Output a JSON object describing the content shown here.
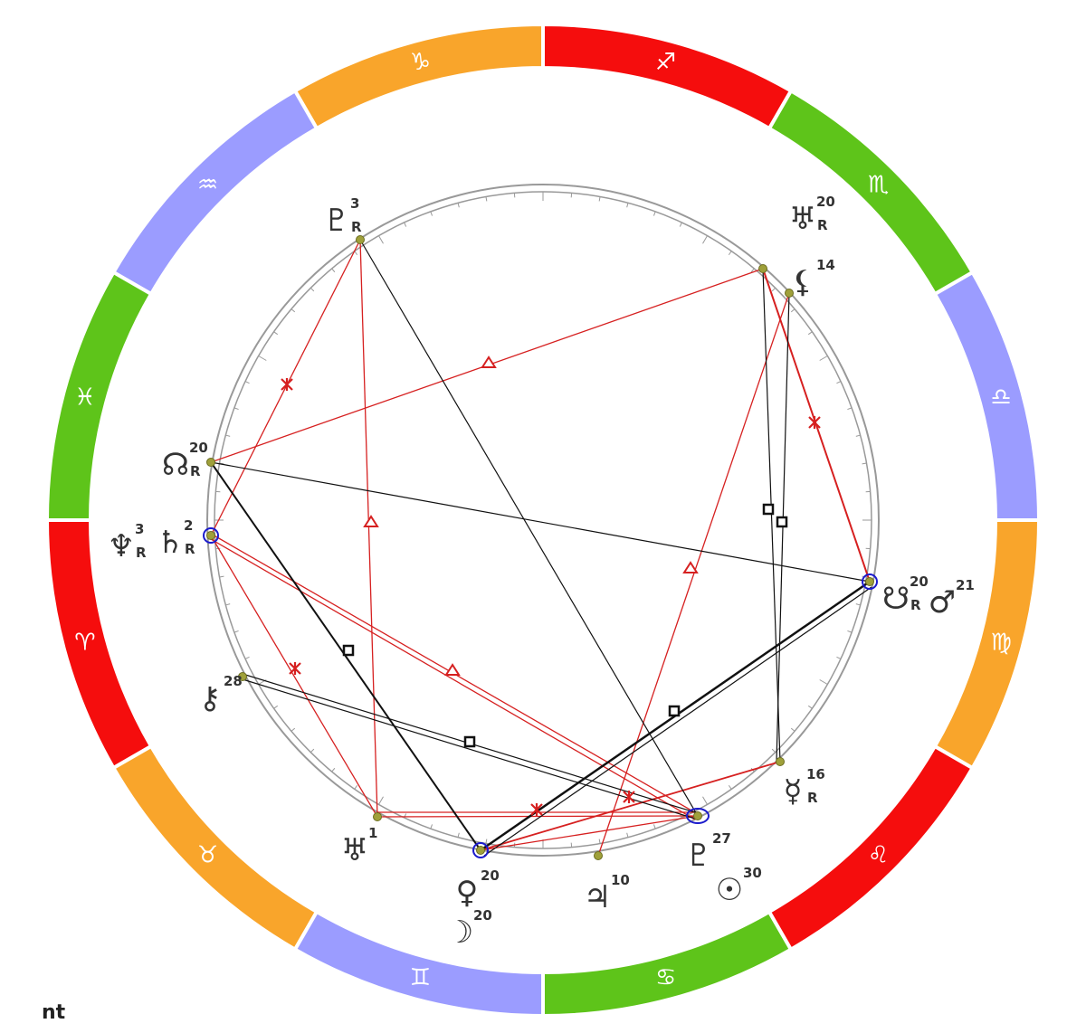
{
  "zodiac": [
    {
      "glyph": "♎",
      "color": "#9b9cff"
    },
    {
      "glyph": "♏",
      "color": "#5ec41a"
    },
    {
      "glyph": "♐",
      "color": "#f50d0d"
    },
    {
      "glyph": "♑",
      "color": "#f9a52b"
    },
    {
      "glyph": "♒",
      "color": "#9b9cff"
    },
    {
      "glyph": "♓",
      "color": "#5ec41a"
    },
    {
      "glyph": "♈",
      "color": "#f50d0d"
    },
    {
      "glyph": "♉",
      "color": "#f9a52b"
    },
    {
      "glyph": "♊",
      "color": "#9b9cff"
    },
    {
      "glyph": "♋",
      "color": "#5ec41a"
    },
    {
      "glyph": "♌",
      "color": "#f50d0d"
    },
    {
      "glyph": "♍",
      "color": "#f9a52b"
    }
  ],
  "planets": [
    {
      "glyph": "♇",
      "degree": 3,
      "retrograde": "R"
    },
    {
      "glyph": "♅",
      "degree": 20,
      "retrograde": "R"
    },
    {
      "glyph": "⚸",
      "degree": 14
    },
    {
      "glyph": "☊",
      "degree": 20,
      "retrograde": "R"
    },
    {
      "glyph": "♆",
      "degree": 3,
      "retrograde": "R"
    },
    {
      "glyph": "♄",
      "degree": 2,
      "retrograde": "R"
    },
    {
      "glyph": "☋",
      "degree": 20,
      "retrograde": "R"
    },
    {
      "glyph": "♂",
      "degree": 21
    },
    {
      "glyph": "⚷",
      "degree": 28
    },
    {
      "glyph": "☿",
      "degree": 16,
      "retrograde": "R"
    },
    {
      "glyph": "♅",
      "degree": 1
    },
    {
      "glyph": "♀",
      "degree": 20
    },
    {
      "glyph": "☽",
      "degree": 20
    },
    {
      "glyph": "♃",
      "degree": 10
    },
    {
      "glyph": "♇",
      "degree": 27
    },
    {
      "glyph": "☉",
      "degree": 30
    }
  ],
  "footer": "nt"
}
